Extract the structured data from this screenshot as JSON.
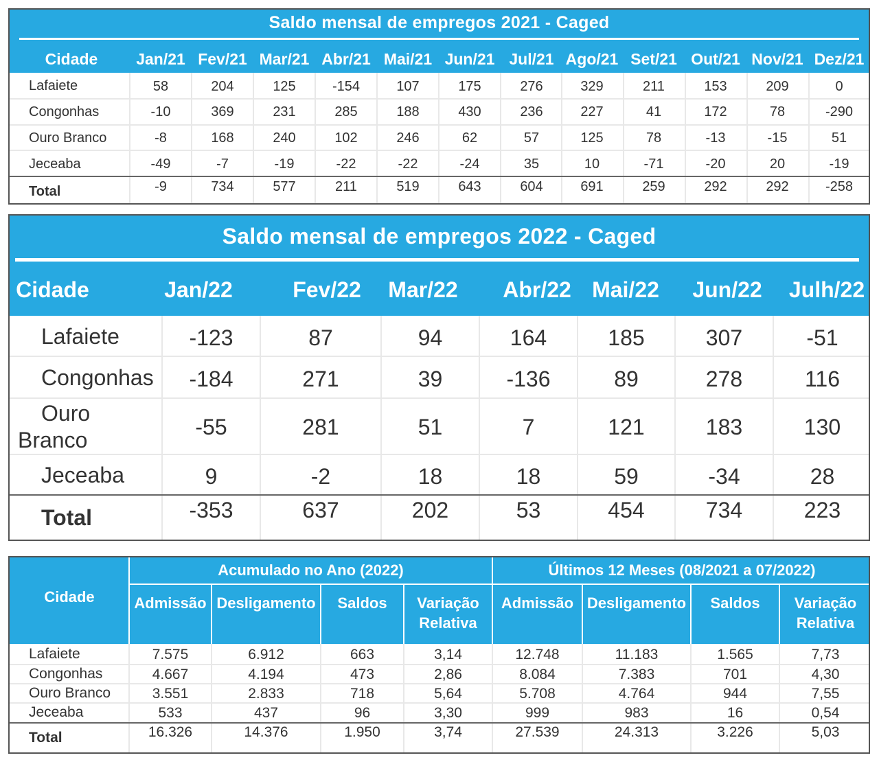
{
  "t2021": {
    "title": "Saldo mensal de empregos 2021 - Caged",
    "city_header": "Cidade",
    "months": [
      "Jan/21",
      "Fev/21",
      "Mar/21",
      "Abr/21",
      "Mai/21",
      "Jun/21",
      "Jul/21",
      "Ago/21",
      "Set/21",
      "Out/21",
      "Nov/21",
      "Dez/21"
    ],
    "rows": [
      {
        "city": "Lafaiete",
        "values": [
          "58",
          "204",
          "125",
          "-154",
          "107",
          "175",
          "276",
          "329",
          "211",
          "153",
          "209",
          "0"
        ]
      },
      {
        "city": "Congonhas",
        "values": [
          "-10",
          "369",
          "231",
          "285",
          "188",
          "430",
          "236",
          "227",
          "41",
          "172",
          "78",
          "-290"
        ]
      },
      {
        "city": "Ouro Branco",
        "values": [
          "-8",
          "168",
          "240",
          "102",
          "246",
          "62",
          "57",
          "125",
          "78",
          "-13",
          "-15",
          "51"
        ]
      },
      {
        "city": "Jeceaba",
        "values": [
          "-49",
          "-7",
          "-19",
          "-22",
          "-22",
          "-24",
          "35",
          "10",
          "-71",
          "-20",
          "20",
          "-19"
        ]
      },
      {
        "city": "Total",
        "values": [
          "-9",
          "734",
          "577",
          "211",
          "519",
          "643",
          "604",
          "691",
          "259",
          "292",
          "292",
          "-258"
        ]
      }
    ]
  },
  "t2022": {
    "title": "Saldo mensal de empregos 2022 - Caged",
    "city_header": "Cidade",
    "months": [
      "Jan/22",
      "Fev/22",
      "Mar/22",
      "Abr/22",
      "Mai/22",
      "Jun/22",
      "Julh/22"
    ],
    "rows": [
      {
        "city": "Lafaiete",
        "values": [
          "-123",
          "87",
          "94",
          "164",
          "185",
          "307",
          "-51"
        ]
      },
      {
        "city": "Congonhas",
        "values": [
          "-184",
          "271",
          "39",
          "-136",
          "89",
          "278",
          "116"
        ]
      },
      {
        "city_line1": "Ouro",
        "city_line2": "Branco",
        "values": [
          "-55",
          "281",
          "51",
          "7",
          "121",
          "183",
          "130"
        ]
      },
      {
        "city": "Jeceaba",
        "values": [
          "9",
          "-2",
          "18",
          "18",
          "59",
          "-34",
          "28"
        ]
      },
      {
        "city": "Total",
        "values": [
          "-353",
          "637",
          "202",
          "53",
          "454",
          "734",
          "223"
        ]
      }
    ]
  },
  "acum": {
    "city_header": "Cidade",
    "group1": "Acumulado no Ano (2022)",
    "group2": "Últimos 12 Meses (08/2021 a 07/2022)",
    "sub": [
      "Admissão",
      "Desligamento",
      "Saldos",
      "Variação",
      "Relativa"
    ],
    "rows": [
      {
        "city": "Lafaiete",
        "values": [
          "7.575",
          "6.912",
          "663",
          "3,14",
          "12.748",
          "11.183",
          "1.565",
          "7,73"
        ]
      },
      {
        "city": "Congonhas",
        "values": [
          "4.667",
          "4.194",
          "473",
          "2,86",
          "8.084",
          "7.383",
          "701",
          "4,30"
        ]
      },
      {
        "city": "Ouro Branco",
        "values": [
          "3.551",
          "2.833",
          "718",
          "5,64",
          "5.708",
          "4.764",
          "944",
          "7,55"
        ]
      },
      {
        "city": "Jeceaba",
        "values": [
          "533",
          "437",
          "96",
          "3,30",
          "999",
          "983",
          "16",
          "0,54"
        ]
      },
      {
        "city": "Total",
        "values": [
          "16.326",
          "14.376",
          "1.950",
          "3,74",
          "27.539",
          "24.313",
          "3.226",
          "5,03"
        ]
      }
    ]
  }
}
